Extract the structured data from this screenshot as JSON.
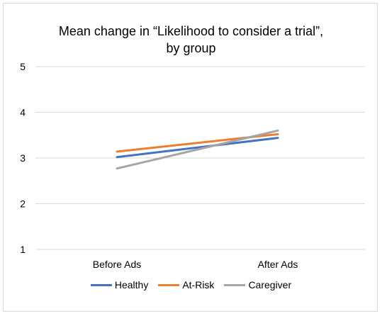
{
  "chart_data": {
    "type": "line",
    "title_lines": [
      "Mean change in “Likelihood to consider a trial”,",
      "by group"
    ],
    "categories": [
      "Before Ads",
      "After Ads"
    ],
    "ylim": [
      1,
      5
    ],
    "yticks": [
      "1",
      "2",
      "3",
      "4",
      "5"
    ],
    "grid": true,
    "legend_position": "bottom",
    "series": [
      {
        "name": "Healthy",
        "color": "#4472c4",
        "values": [
          3.02,
          3.44
        ]
      },
      {
        "name": "At-Risk",
        "color": "#ed7d31",
        "values": [
          3.14,
          3.52
        ]
      },
      {
        "name": "Caregiver",
        "color": "#a5a5a5",
        "values": [
          2.77,
          3.6
        ]
      }
    ]
  }
}
